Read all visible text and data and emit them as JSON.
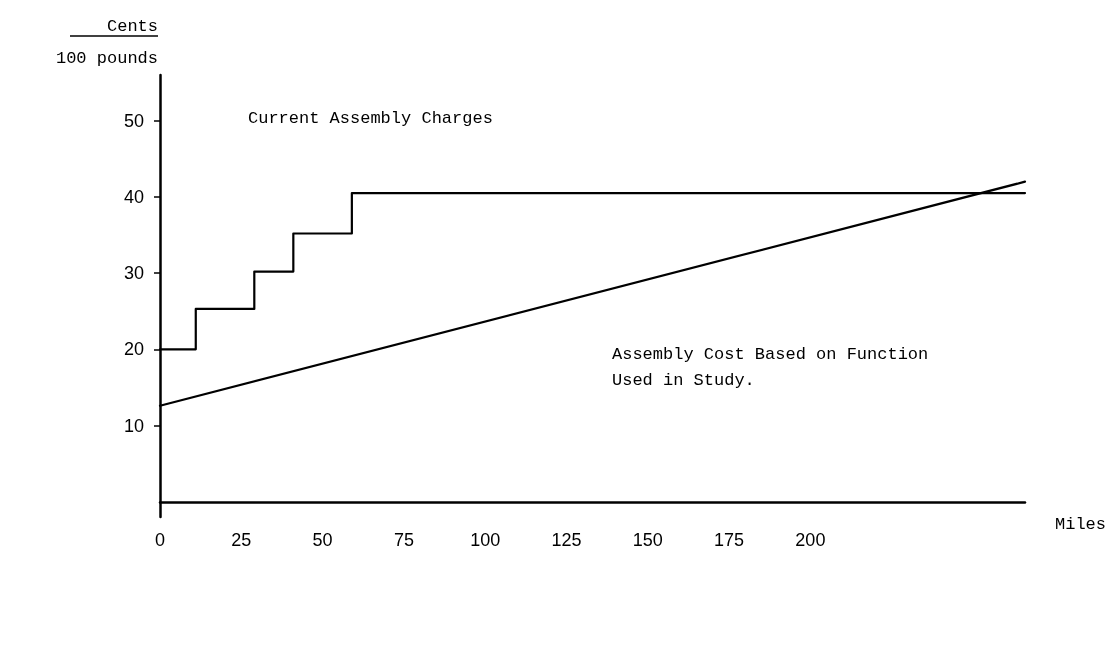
{
  "chart_data": {
    "type": "line",
    "ylabel": "Cents\n100 pounds",
    "xlabel": "Miles",
    "series": [
      {
        "type": "step",
        "color": "#000000",
        "x": [
          0,
          11,
          29,
          41,
          59,
          266
        ],
        "values": [
          20,
          25.3,
          30.2,
          35.2,
          40.5,
          40.5
        ]
      },
      {
        "type": "line",
        "color": "#000000",
        "x": [
          0,
          266
        ],
        "values": [
          12.6,
          42
        ]
      }
    ],
    "annotations": [
      "Current Assembly Charges",
      "Assembly Cost Based on Function\nUsed in Study."
    ],
    "xlim": [
      0,
      266
    ],
    "xticks": [
      0,
      25,
      50,
      75,
      100,
      125,
      150,
      175,
      200
    ],
    "ylim": [
      -2,
      56
    ],
    "yticks": [
      10,
      20,
      30,
      40,
      50
    ],
    "grid": false,
    "marker": "none",
    "line_style": "solid"
  }
}
